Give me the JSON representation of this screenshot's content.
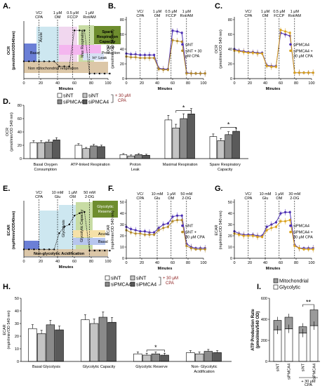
{
  "panels": {
    "A": "A.",
    "B": "B.",
    "C": "C.",
    "D": "D.",
    "E": "E.",
    "F": "F.",
    "G": "G.",
    "H": "H.",
    "I": "I."
  },
  "injections_ocr": [
    {
      "dose": "VC/",
      "drug": "CPA",
      "t": 18
    },
    {
      "dose": "1 μM",
      "drug": "OM",
      "t": 40
    },
    {
      "dose": "0.5 μM",
      "drug": "FCCP",
      "t": 58
    },
    {
      "dose": "1 μM",
      "drug": "Rot/AM",
      "t": 78
    }
  ],
  "injections_ecar": [
    {
      "dose": "VC/",
      "drug": "CPA",
      "t": 18
    },
    {
      "dose": "10 mM",
      "drug": "Glu",
      "t": 40
    },
    {
      "dose": "1 μM",
      "drug": "OM",
      "t": 58
    },
    {
      "dose": "50 mM",
      "drug": "2-DG",
      "t": 78
    }
  ],
  "injections_ecar_fg": [
    {
      "dose": "VC/",
      "drug": "CPA",
      "t": 18
    },
    {
      "dose": "10 mM",
      "drug": "Glu",
      "t": 40
    },
    {
      "dose": "1 μM",
      "drug": "OM",
      "t": 58
    },
    {
      "dose": "30 mM",
      "drug": "2-DG",
      "t": 78
    }
  ],
  "labels": {
    "ocr_axis_a": "OCR",
    "ocr_axis_a2": "(pmol/min/OD540nm)",
    "ocr_axis": "OCR",
    "ocr_axis2": "(pmol/min/OD 540 nm)",
    "ecar_axis_e": "ECAR",
    "ecar_axis_e2": "(mpH/min/OD540nm)",
    "ecar_axis": "ECAR",
    "ecar_axis2": "(mpH/min/OD 540 nm)",
    "minutes": "Minutes",
    "atp_axis": "ATP Production  Rate",
    "atp_axis2": "(pmol/min/540 OD)"
  },
  "panel_a": {
    "spare": [
      "Spare",
      "Respiration",
      "Capacity"
    ],
    "max": "Max Respiration",
    "atp": [
      "ATP",
      "Production"
    ],
    "leak": "H⁺ Leak",
    "basal": "Basal",
    "acute": "Acute",
    "nonmito": "Non mitochondrial respiration"
  },
  "panel_e": {
    "reserve": [
      "Glycolytic",
      "Reserve"
    ],
    "capacity": "Glycolytic Capacity",
    "glycolysis": "Glycolysis",
    "acute": "Acute",
    "basal": "Basal",
    "nonglyc": "Non-glycolytic Acidification"
  },
  "legends": {
    "B": [
      "siNT",
      "siNT + 30",
      "μM CPA"
    ],
    "C": [
      "siPMCA4",
      "siPMCA4 +",
      "30 μM CPA"
    ],
    "F": [
      "siNT",
      "siNT +",
      "30 μM CPA"
    ],
    "G": [
      "siPMCA4",
      "siPMCA4 +",
      "30 μM CPA"
    ],
    "bars": [
      "siNT",
      "siNT",
      "siPMCA4",
      "siPMCA4"
    ],
    "cpa": [
      "+ 30 μM",
      "CPA"
    ],
    "I": [
      "Mitochondrial",
      "Glycolytic"
    ],
    "I_cpa": [
      "+ 30 μM",
      "CPA"
    ]
  },
  "significance": "*",
  "significance_i": "**",
  "chart_data": [
    {
      "panel": "A",
      "type": "line",
      "xlabel": "Minutes",
      "ylabel": "OCR (pmol/min/OD540nm)",
      "x": [
        0,
        6,
        12,
        18,
        24,
        30,
        36,
        42,
        48,
        54,
        60,
        66,
        72,
        78,
        84,
        90,
        96,
        102
      ],
      "values": [
        24,
        24,
        24,
        24,
        24,
        24,
        24,
        17,
        17,
        17,
        67,
        67,
        67,
        7,
        7,
        7,
        7,
        7
      ],
      "xlim": [
        0,
        100
      ]
    },
    {
      "panel": "B",
      "type": "line",
      "xlabel": "Minutes",
      "ylabel": "OCR (pmol/min/OD 540 nm)",
      "ylim": [
        0,
        80
      ],
      "x": [
        0,
        6,
        12,
        18,
        24,
        30,
        36,
        42,
        48,
        54,
        60,
        66,
        72,
        78,
        84,
        90,
        96,
        102
      ],
      "series": [
        {
          "name": "siNT",
          "values": [
            34,
            33,
            33,
            32,
            32,
            32,
            32,
            14,
            13,
            13,
            65,
            64,
            62,
            8,
            7,
            7,
            7,
            7
          ]
        },
        {
          "name": "siNT + 30 μM CPA",
          "values": [
            30,
            29,
            29,
            28,
            28,
            28,
            28,
            13,
            12,
            12,
            52,
            51,
            50,
            7,
            7,
            7,
            7,
            7
          ]
        }
      ]
    },
    {
      "panel": "C",
      "type": "line",
      "xlabel": "Minutes",
      "ylabel": "OCR (pmol/min/OD 540 nm)",
      "ylim": [
        0,
        80
      ],
      "x": [
        0,
        6,
        12,
        18,
        24,
        30,
        36,
        42,
        48,
        54,
        60,
        66,
        72,
        78,
        84,
        90,
        96,
        102
      ],
      "series": [
        {
          "name": "siPMCA4",
          "values": [
            40,
            38,
            37,
            36,
            36,
            35,
            35,
            18,
            17,
            17,
            62,
            60,
            58,
            8,
            8,
            8,
            8,
            8
          ]
        },
        {
          "name": "siPMCA4 + 30 μM CPA",
          "values": [
            38,
            37,
            36,
            35,
            35,
            34,
            34,
            17,
            16,
            16,
            66,
            64,
            62,
            8,
            8,
            8,
            8,
            8
          ]
        }
      ]
    },
    {
      "panel": "D",
      "type": "bar",
      "ylabel": "OCR (pmol/min/OD 540 nm)",
      "ylim": [
        0,
        80
      ],
      "categories": [
        "Basal Oxygen Consumption",
        "ATP-linked Respiration",
        "Proton  Leak",
        "Maximal Respiration",
        "Spare Respiratory Capacity"
      ],
      "series": [
        {
          "name": "siNT",
          "values": [
            24,
            20,
            6,
            58,
            33
          ]
        },
        {
          "name": "siNT + 30 μM CPA",
          "values": [
            24,
            15,
            4,
            46,
            27
          ]
        },
        {
          "name": "siPMCA4",
          "values": [
            25,
            19,
            6,
            60,
            36
          ]
        },
        {
          "name": "siPMCA4 + 30 μM CPA",
          "values": [
            28,
            18,
            5,
            67,
            41
          ]
        }
      ]
    },
    {
      "panel": "E",
      "type": "line",
      "xlabel": "Minutes",
      "ylabel": "ECAR (mpH/min/OD540nm)",
      "x": [
        0,
        6,
        12,
        18,
        24,
        30,
        36,
        42,
        48,
        54,
        60,
        66,
        72,
        78,
        84,
        90,
        96,
        102
      ],
      "values": [
        6,
        6,
        6,
        6,
        6,
        6,
        6,
        19,
        24,
        26,
        33,
        35,
        36,
        5,
        5,
        5,
        5,
        5
      ],
      "xlim": [
        0,
        100
      ]
    },
    {
      "panel": "F",
      "type": "line",
      "xlabel": "Minutes",
      "ylabel": "ECAR (mpH/min/OD 540 nm)",
      "ylim": [
        0,
        50
      ],
      "x": [
        0,
        6,
        12,
        18,
        24,
        30,
        36,
        42,
        48,
        54,
        60,
        66,
        72,
        78,
        84,
        90,
        96,
        102
      ],
      "series": [
        {
          "name": "siNT",
          "values": [
            28,
            26,
            25,
            24,
            24,
            23,
            23,
            27,
            30,
            31,
            37,
            38,
            38,
            13,
            10,
            9,
            9,
            9
          ]
        },
        {
          "name": "siNT + 30 μM CPA",
          "values": [
            25,
            23,
            22,
            22,
            21,
            21,
            21,
            25,
            27,
            28,
            33,
            34,
            34,
            11,
            9,
            8,
            8,
            8
          ]
        }
      ]
    },
    {
      "panel": "G",
      "type": "line",
      "xlabel": "Minutes",
      "ylabel": "ECAR (mpH/min/OD 540 nm)",
      "ylim": [
        0,
        50
      ],
      "x": [
        0,
        6,
        12,
        18,
        24,
        30,
        36,
        42,
        48,
        54,
        60,
        66,
        72,
        78,
        84,
        90,
        96,
        102
      ],
      "series": [
        {
          "name": "siPMCA4",
          "values": [
            24,
            22,
            21,
            21,
            21,
            20,
            20,
            28,
            30,
            32,
            40,
            41,
            41,
            12,
            9,
            9,
            9,
            9
          ]
        },
        {
          "name": "siPMCA4 + 30 μM CPA",
          "values": [
            22,
            21,
            20,
            20,
            20,
            19,
            19,
            25,
            27,
            28,
            33,
            33,
            34,
            11,
            9,
            8,
            8,
            8
          ]
        }
      ]
    },
    {
      "panel": "H",
      "type": "bar",
      "ylabel": "ECAR (mpH/min/OD 540 nm)",
      "ylim": [
        0,
        50
      ],
      "categories": [
        "Basal Glycolysis",
        "Glycolytic Capacity",
        "Glycolytic Reserve",
        "Non- Glycolytic Acidification"
      ],
      "series": [
        {
          "name": "siNT",
          "values": [
            26,
            33,
            6,
            7
          ]
        },
        {
          "name": "siNT + 30 μM CPA",
          "values": [
            22,
            30,
            5,
            6
          ]
        },
        {
          "name": "siPMCA4",
          "values": [
            29,
            35,
            6,
            8
          ]
        },
        {
          "name": "siPMCA4 + 30 μM CPA",
          "values": [
            25,
            31,
            5,
            7
          ]
        }
      ]
    },
    {
      "panel": "I",
      "type": "bar",
      "stacked": true,
      "ylabel": "ATP Production Rate (pmol/min/540 OD)",
      "ylim": [
        0,
        600
      ],
      "categories": [
        "siNT",
        "siPMCA4",
        "siNT",
        "siPMCA4"
      ],
      "series": [
        {
          "name": "Glycolytic",
          "values": [
            300,
            310,
            270,
            340
          ]
        },
        {
          "name": "Mitochondrial",
          "values": [
            90,
            110,
            60,
            150
          ]
        }
      ]
    }
  ]
}
